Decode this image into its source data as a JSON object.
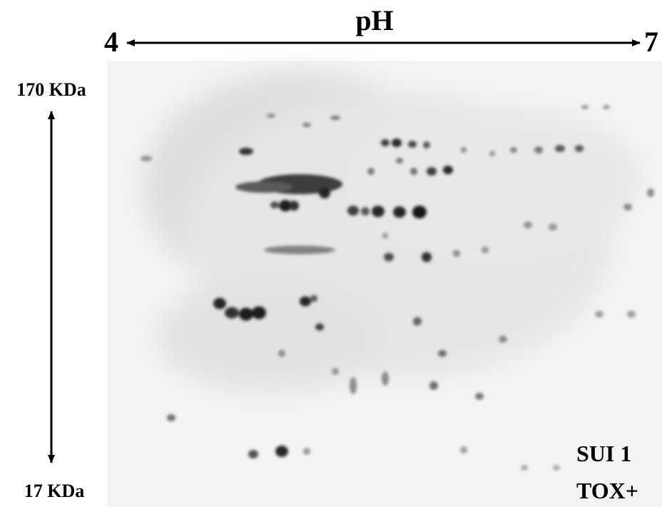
{
  "header": {
    "axis_label": "pH",
    "ph_start": "4",
    "ph_end": "7"
  },
  "mass_axis": {
    "top": "170 KDa",
    "bottom": "17 KDa"
  },
  "sample": {
    "line1": "SUI 1",
    "line2": "TOX+"
  }
}
